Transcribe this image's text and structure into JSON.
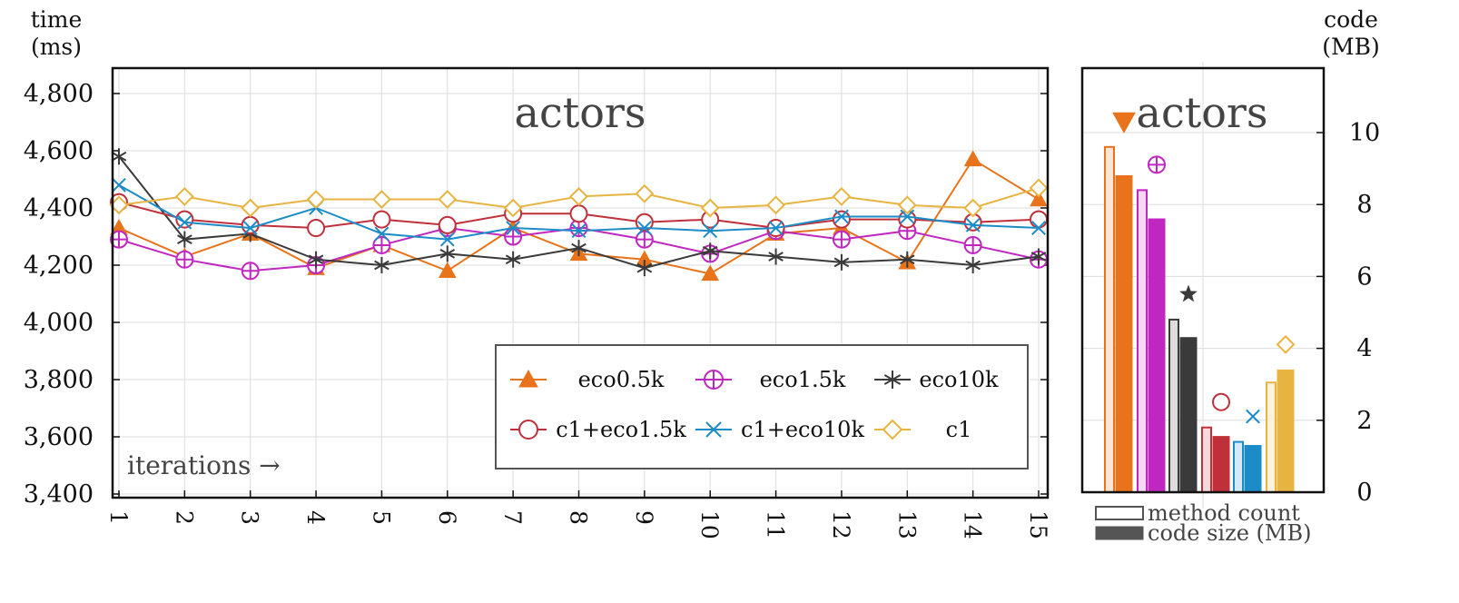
{
  "chart_data": [
    {
      "type": "line",
      "title": "actors",
      "ylabel": [
        "time",
        "(ms)"
      ],
      "xlabel": "iterations →",
      "ylim": [
        3400,
        4800
      ],
      "yticks": [
        3400,
        3600,
        3800,
        4000,
        4200,
        4400,
        4600,
        4800
      ],
      "ytick_labels": [
        "3,400",
        "3,600",
        "3,800",
        "4,000",
        "4,200",
        "4,400",
        "4,600",
        "4,800"
      ],
      "x": [
        1,
        2,
        3,
        4,
        5,
        6,
        7,
        8,
        9,
        10,
        11,
        12,
        13,
        14,
        15
      ],
      "xtick_labels": [
        "1",
        "2",
        "3",
        "4",
        "5",
        "6",
        "7",
        "8",
        "9",
        "10",
        "11",
        "12",
        "13",
        "14",
        "15"
      ],
      "grid": true,
      "legend_position": "bottom-right",
      "series": [
        {
          "name": "eco0.5k",
          "color": "#e8731a",
          "marker": "triangle-filled",
          "values": [
            4330,
            4230,
            4310,
            4190,
            4270,
            4180,
            4330,
            4240,
            4220,
            4170,
            4310,
            4330,
            4210,
            4570,
            4430
          ]
        },
        {
          "name": "eco1.5k",
          "color": "#c027c0",
          "marker": "circle-plus",
          "values": [
            4290,
            4220,
            4180,
            4200,
            4270,
            4330,
            4300,
            4330,
            4290,
            4240,
            4320,
            4290,
            4320,
            4270,
            4220
          ]
        },
        {
          "name": "eco10k",
          "color": "#3a3a3a",
          "marker": "asterisk",
          "values": [
            4580,
            4290,
            4310,
            4220,
            4200,
            4240,
            4220,
            4260,
            4190,
            4250,
            4230,
            4210,
            4220,
            4200,
            4230
          ]
        },
        {
          "name": "c1+eco1.5k",
          "color": "#c0303a",
          "marker": "circle-open",
          "values": [
            4420,
            4360,
            4340,
            4330,
            4360,
            4340,
            4380,
            4380,
            4350,
            4360,
            4330,
            4360,
            4360,
            4350,
            4360
          ]
        },
        {
          "name": "c1+eco10k",
          "color": "#1c8cc8",
          "marker": "x",
          "values": [
            4480,
            4350,
            4330,
            4400,
            4310,
            4290,
            4330,
            4320,
            4330,
            4320,
            4330,
            4370,
            4370,
            4340,
            4330
          ]
        },
        {
          "name": "c1",
          "color": "#e8b441",
          "marker": "diamond-open",
          "values": [
            4410,
            4440,
            4400,
            4430,
            4430,
            4430,
            4400,
            4440,
            4450,
            4400,
            4410,
            4440,
            4410,
            4400,
            4470
          ]
        }
      ]
    },
    {
      "type": "bar",
      "title": "actors",
      "ylabel": [
        "code",
        "(MB)"
      ],
      "ylim": [
        0,
        10
      ],
      "yticks": [
        0,
        2,
        4,
        6,
        8,
        10
      ],
      "ytick_labels": [
        "0",
        "2",
        "4",
        "6",
        "8",
        "10"
      ],
      "grid": true,
      "legend": [
        {
          "label": "method count",
          "style": "outline"
        },
        {
          "label": "code size (MB)",
          "style": "filled"
        }
      ],
      "groups": [
        {
          "series": "eco0.5k",
          "color": "#e8731a",
          "marker": "triangle-down-filled",
          "method_count": 9.6,
          "code_size_mb": 8.8
        },
        {
          "series": "eco1.5k",
          "color": "#c027c0",
          "marker": "circle-plus",
          "method_count": 8.4,
          "code_size_mb": 7.6
        },
        {
          "series": "eco10k",
          "color": "#3a3a3a",
          "marker": "star",
          "method_count": 4.8,
          "code_size_mb": 4.3
        },
        {
          "series": "c1+eco1.5k",
          "color": "#c0303a",
          "marker": "circle-open",
          "method_count": 1.8,
          "code_size_mb": 1.55
        },
        {
          "series": "c1+eco10k",
          "color": "#1c8cc8",
          "marker": "x",
          "method_count": 1.4,
          "code_size_mb": 1.3
        },
        {
          "series": "c1",
          "color": "#e8b441",
          "marker": "diamond-open",
          "method_count": 3.05,
          "code_size_mb": 3.4
        }
      ]
    }
  ]
}
